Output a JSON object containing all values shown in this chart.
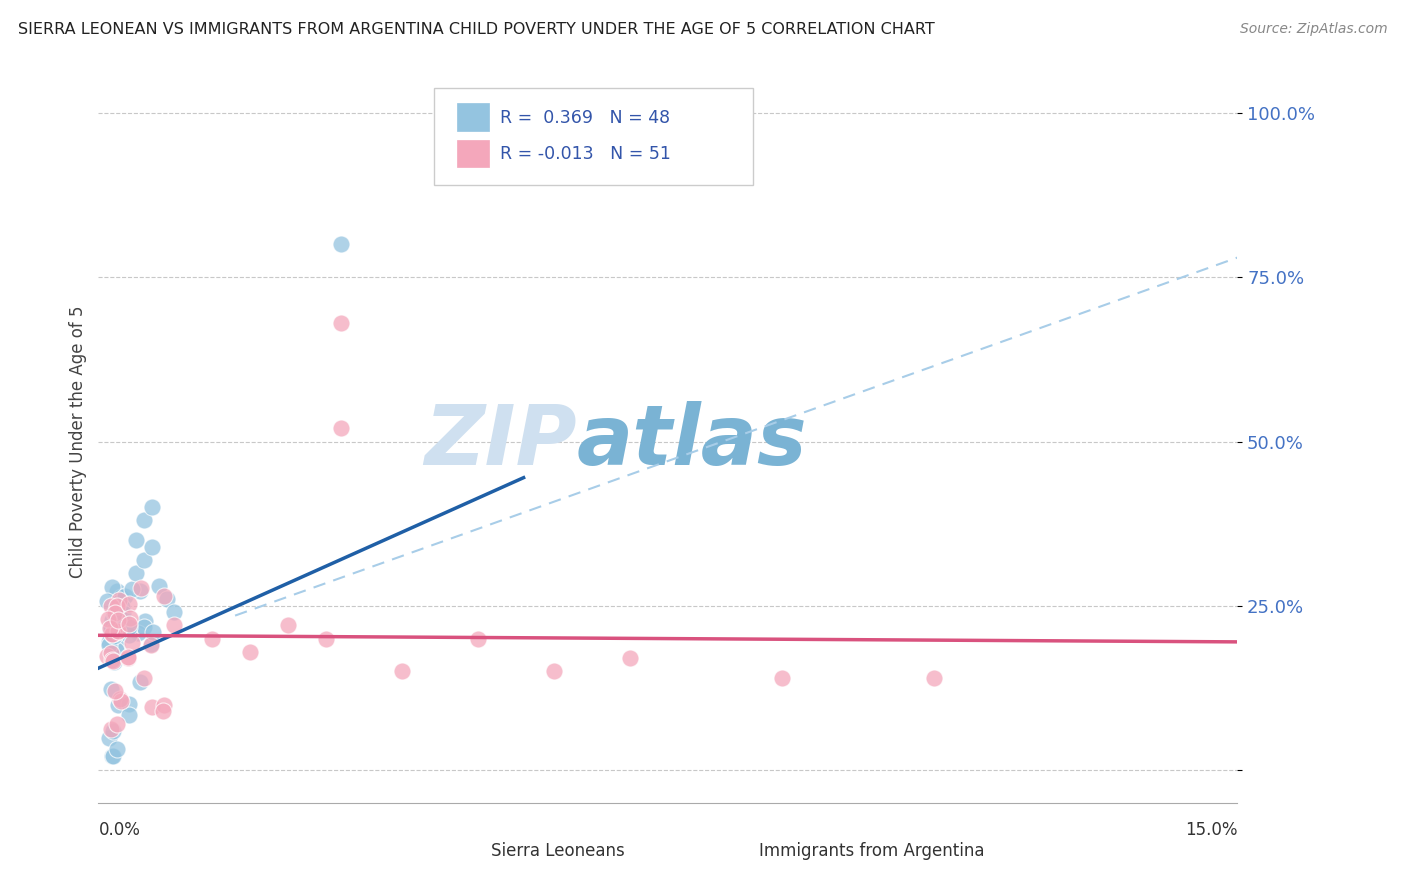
{
  "title": "SIERRA LEONEAN VS IMMIGRANTS FROM ARGENTINA CHILD POVERTY UNDER THE AGE OF 5 CORRELATION CHART",
  "source": "Source: ZipAtlas.com",
  "ylabel": "Child Poverty Under the Age of 5",
  "yticks": [
    0.0,
    0.25,
    0.5,
    0.75,
    1.0
  ],
  "ytick_labels": [
    "",
    "25.0%",
    "50.0%",
    "75.0%",
    "100.0%"
  ],
  "xlim": [
    0.0,
    0.15
  ],
  "ylim": [
    -0.05,
    1.05
  ],
  "R_sl": 0.369,
  "N_sl": 48,
  "R_arg": -0.013,
  "N_arg": 51,
  "color_sl": "#94c4e0",
  "color_arg": "#f4a7bb",
  "color_sl_line": "#1f5fa6",
  "color_arg_line": "#d9527e",
  "color_dashed": "#a8cde8",
  "watermark_zip": "ZIP",
  "watermark_atlas": "atlas",
  "watermark_color_zip": "#cfe0f0",
  "watermark_color_atlas": "#7ab3d4",
  "legend_label_sl": "Sierra Leoneans",
  "legend_label_arg": "Immigrants from Argentina",
  "background_color": "#ffffff",
  "sl_line_x0": 0.0,
  "sl_line_y0": 0.155,
  "sl_line_x1": 0.056,
  "sl_line_y1": 0.445,
  "arg_line_x0": 0.0,
  "arg_line_y0": 0.205,
  "arg_line_x1": 0.15,
  "arg_line_y1": 0.195,
  "dash_line_x0": 0.018,
  "dash_line_y0": 0.235,
  "dash_line_x1": 0.15,
  "dash_line_y1": 0.78
}
